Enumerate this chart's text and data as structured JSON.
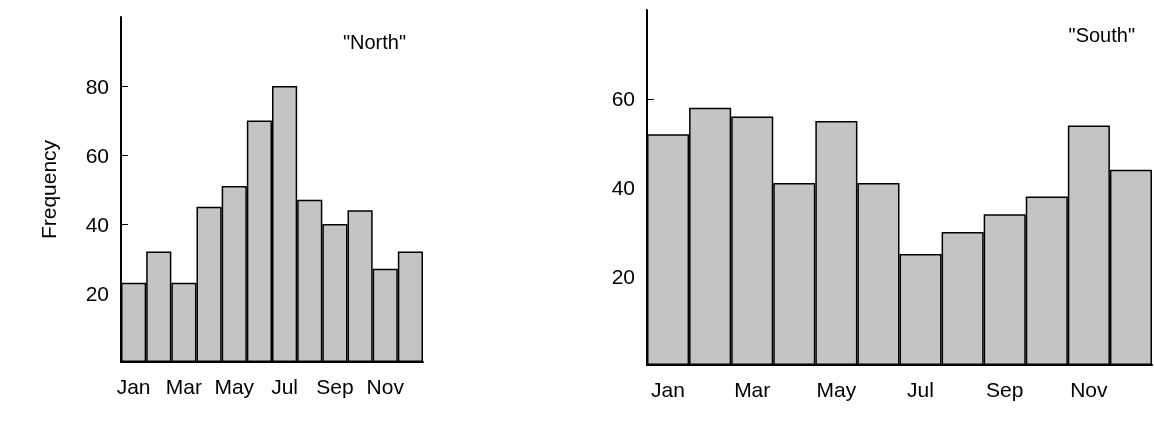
{
  "chart_data": [
    {
      "type": "bar",
      "title": "\"North\"",
      "ylabel": "Frequency",
      "categories": [
        "Jan",
        null,
        "Mar",
        null,
        "May",
        null,
        "Jul",
        null,
        "Sep",
        null,
        "Nov",
        null
      ],
      "values": [
        23,
        32,
        23,
        45,
        51,
        70,
        80,
        47,
        40,
        44,
        27,
        32
      ],
      "color": "#c4c4c4",
      "ylim": [
        0,
        100
      ],
      "yticks": [
        20,
        40,
        60,
        80
      ],
      "grid": false
    },
    {
      "type": "bar",
      "title": "\"South\"",
      "categories": [
        "Jan",
        null,
        "Mar",
        null,
        "May",
        null,
        "Jul",
        null,
        "Sep",
        null,
        "Nov",
        null
      ],
      "values": [
        52,
        58,
        56,
        41,
        55,
        41,
        25,
        30,
        34,
        38,
        54,
        44
      ],
      "color": "#c4c4c4",
      "ylim": [
        0,
        80
      ],
      "yticks": [
        20,
        40,
        60
      ],
      "grid": false
    }
  ]
}
